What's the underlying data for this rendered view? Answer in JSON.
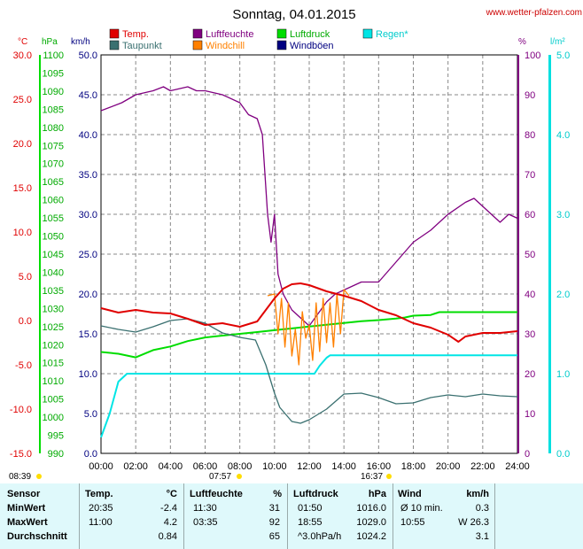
{
  "header": {
    "title": "Sonntag, 04.01.2015",
    "website": "www.wetter-pfalzen.com",
    "legend": [
      {
        "label": "Temp.",
        "color": "#e00000"
      },
      {
        "label": "Luftfeuchte",
        "color": "#800080"
      },
      {
        "label": "Luftdruck",
        "color": "#00dd00"
      },
      {
        "label": "Regen*",
        "color": "#00e5e5"
      },
      {
        "label": "Taupunkt",
        "color": "#3a7070"
      },
      {
        "label": "Windchill",
        "color": "#ff8000"
      },
      {
        "label": "Windböen",
        "color": "#000080"
      }
    ],
    "units": {
      "temp": "°C",
      "pressure": "hPa",
      "wind": "km/h",
      "humidity": "%",
      "rain": "l/m²"
    },
    "sun": {
      "sunrise": "08:39",
      "sunset": "16:37",
      "marker_left": "07:57"
    }
  },
  "chart_data": {
    "type": "line",
    "x_label_ticks": [
      "00:00",
      "02:00",
      "04:00",
      "06:00",
      "08:00",
      "10:00",
      "12:00",
      "14:00",
      "16:00",
      "18:00",
      "20:00",
      "22:00",
      "24:00"
    ],
    "xlim": [
      0,
      24
    ],
    "axes": {
      "temp": {
        "lim": [
          -15,
          30
        ],
        "ticks": [
          "30.0",
          "25.0",
          "20.0",
          "15.0",
          "10.0",
          "5.0",
          "0.0",
          "-5.0",
          "-10.0",
          "-15.0"
        ]
      },
      "pressure": {
        "lim": [
          990,
          1100
        ],
        "ticks": [
          "1100",
          "1095",
          "1090",
          "1085",
          "1080",
          "1075",
          "1070",
          "1065",
          "1060",
          "1055",
          "1050",
          "1045",
          "1040",
          "1035",
          "1030",
          "1025",
          "1020",
          "1015",
          "1010",
          "1005",
          "1000",
          "995",
          "990"
        ]
      },
      "wind": {
        "lim": [
          0,
          50
        ],
        "ticks": [
          "50.0",
          "45.0",
          "40.0",
          "35.0",
          "30.0",
          "25.0",
          "20.0",
          "15.0",
          "10.0",
          "5.0",
          "0.0"
        ]
      },
      "humidity": {
        "lim": [
          0,
          100
        ],
        "ticks": [
          "100",
          "90",
          "80",
          "70",
          "60",
          "50",
          "40",
          "30",
          "20",
          "10",
          "0"
        ]
      },
      "rain": {
        "lim": [
          0,
          5
        ],
        "ticks": [
          "5.0",
          "4.0",
          "3.0",
          "2.0",
          "1.0",
          "0.0"
        ]
      }
    },
    "series": [
      {
        "name": "Temp.",
        "axis": "temp",
        "color": "#e00000",
        "x": [
          0,
          1,
          2,
          3,
          4,
          5,
          6,
          7,
          8,
          9,
          10,
          10.5,
          11,
          11.5,
          12,
          13,
          14,
          15,
          16,
          17,
          18,
          19,
          20,
          20.6,
          21,
          22,
          23,
          24
        ],
        "y": [
          1.4,
          0.9,
          1.2,
          0.9,
          0.8,
          0.2,
          -0.5,
          -0.3,
          -0.7,
          -0.1,
          2.5,
          3.6,
          4.1,
          4.2,
          4.0,
          3.3,
          2.8,
          2.2,
          1.2,
          0.6,
          -0.3,
          -0.8,
          -1.6,
          -2.4,
          -1.8,
          -1.4,
          -1.4,
          -1.2
        ]
      },
      {
        "name": "Taupunkt",
        "axis": "temp",
        "color": "#3a7070",
        "x": [
          0,
          1,
          2,
          3,
          4,
          5,
          6,
          7,
          8,
          8.9,
          9.5,
          10,
          10.3,
          11,
          11.5,
          12,
          13,
          14,
          15,
          16,
          17,
          18,
          19,
          20,
          21,
          22,
          23,
          24
        ],
        "y": [
          -0.6,
          -1.0,
          -1.3,
          -0.7,
          0.0,
          0.2,
          -0.3,
          -1.4,
          -1.9,
          -2.2,
          -5.0,
          -8.2,
          -9.8,
          -11.4,
          -11.6,
          -11.2,
          -10.0,
          -8.3,
          -8.2,
          -8.7,
          -9.4,
          -9.3,
          -8.7,
          -8.4,
          -8.6,
          -8.3,
          -8.5,
          -8.6
        ]
      },
      {
        "name": "Luftfeuchte",
        "axis": "humidity",
        "color": "#800080",
        "x": [
          0,
          1.2,
          2,
          3,
          3.6,
          4,
          5,
          5.5,
          6,
          7,
          8,
          8.5,
          9,
          9.3,
          9.6,
          9.8,
          10,
          10.2,
          10.5,
          11,
          11.5,
          12,
          12.5,
          13,
          13.5,
          14,
          15,
          16,
          17,
          18,
          19,
          20,
          21,
          21.5,
          22,
          22.5,
          23,
          23.5,
          24
        ],
        "y": [
          86,
          88,
          90,
          91,
          92,
          91,
          92,
          91,
          91,
          90,
          88,
          85,
          84,
          80,
          60,
          53,
          60,
          45,
          40,
          36,
          34,
          32,
          35,
          38,
          40,
          41,
          43,
          43,
          48,
          53,
          56,
          60,
          63,
          64,
          62,
          60,
          58,
          60,
          59
        ]
      },
      {
        "name": "Luftdruck",
        "axis": "pressure",
        "color": "#00dd00",
        "x": [
          0,
          1,
          2,
          3,
          4,
          5,
          6,
          7,
          8,
          9,
          10,
          11,
          12,
          13,
          14,
          15,
          16,
          17,
          17.5,
          18,
          19,
          19.5,
          20,
          21,
          22,
          23,
          24
        ],
        "y": [
          1018.0,
          1017.5,
          1016.5,
          1018.5,
          1019.5,
          1021.0,
          1022.0,
          1022.5,
          1023.0,
          1023.5,
          1024.0,
          1024.5,
          1025.0,
          1025.5,
          1026.0,
          1026.5,
          1026.8,
          1027.2,
          1027.5,
          1028.0,
          1028.2,
          1029.0,
          1029.0,
          1029.0,
          1029.0,
          1029.0,
          1029.0
        ]
      },
      {
        "name": "Windchill",
        "axis": "temp",
        "color": "#ff8000",
        "x": [
          9.6,
          10,
          10.2,
          10.4,
          10.6,
          10.8,
          11,
          11.2,
          11.4,
          11.6,
          11.8,
          12,
          12.2,
          12.4,
          12.6,
          12.8,
          13,
          13.2,
          13.4,
          13.6,
          13.8,
          14,
          14.3
        ],
        "y": [
          2.8,
          3.0,
          -1.5,
          2.5,
          -3.0,
          2.0,
          -4.0,
          -1.0,
          -5.0,
          1.0,
          -2.0,
          -0.5,
          -4.5,
          2.0,
          -3.5,
          2.5,
          -2.5,
          2.0,
          -3.0,
          3.0,
          -1.5,
          3.5,
          2.8
        ]
      },
      {
        "name": "Regen*",
        "axis": "rain",
        "color": "#00e5e5",
        "x": [
          0,
          0.5,
          1,
          1.5,
          2,
          3,
          4,
          5,
          6,
          7,
          8,
          9,
          10,
          11,
          12,
          12.3,
          12.6,
          13,
          13.2,
          14,
          15,
          16,
          17,
          18,
          19,
          20,
          21,
          22,
          23,
          24
        ],
        "y": [
          0.2,
          0.5,
          0.9,
          1.0,
          1.0,
          1.0,
          1.0,
          1.0,
          1.0,
          1.0,
          1.0,
          1.0,
          1.0,
          1.0,
          1.0,
          1.0,
          1.1,
          1.2,
          1.23,
          1.23,
          1.23,
          1.23,
          1.23,
          1.23,
          1.23,
          1.23,
          1.23,
          1.23,
          1.23,
          1.23
        ]
      }
    ]
  },
  "stats": {
    "headers": {
      "sensor": "Sensor",
      "temp": "Temp.",
      "temp_unit": "°C",
      "hum": "Luftfeuchte",
      "hum_unit": "%",
      "press": "Luftdruck",
      "press_unit": "hPa",
      "wind": "Wind",
      "wind_unit": "km/h"
    },
    "rows": [
      {
        "label": "MinWert",
        "temp_time": "20:35",
        "temp_val": "-2.4",
        "hum_time": "11:30",
        "hum_val": "31",
        "press_time": "01:50",
        "press_val": "1016.0",
        "wind_label": "Ø 10 min.",
        "wind_val": "0.3"
      },
      {
        "label": "MaxWert",
        "temp_time": "11:00",
        "temp_val": "4.2",
        "hum_time": "03:35",
        "hum_val": "92",
        "press_time": "18:55",
        "press_val": "1029.0",
        "wind_label": "10:55",
        "wind_val": "W 26.3"
      },
      {
        "label": "Durchschnitt",
        "temp_time": "",
        "temp_val": "0.84",
        "hum_time": "",
        "hum_val": "65",
        "press_time": "^3.0hPa/h",
        "press_val": "1024.2",
        "wind_label": "",
        "wind_val": "3.1"
      }
    ]
  }
}
